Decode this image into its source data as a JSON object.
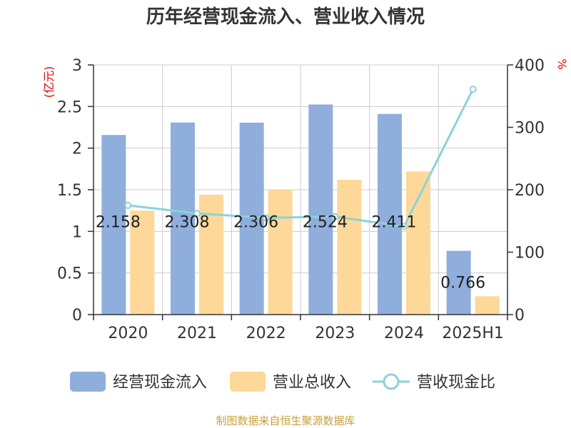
{
  "chart_data": {
    "type": "bar",
    "title": "历年经营现金流入、营业收入情况",
    "categories": [
      "2020",
      "2021",
      "2022",
      "2023",
      "2024",
      "2025H1"
    ],
    "left_axis": {
      "unit_label": "(亿元)",
      "ylim": [
        0,
        3
      ],
      "ticks": [
        "0",
        "0.5",
        "1",
        "1.5",
        "2",
        "2.5",
        "3"
      ]
    },
    "right_axis": {
      "unit_label": "%",
      "ylim": [
        0,
        400
      ],
      "ticks": [
        "0",
        "100",
        "200",
        "300",
        "400"
      ]
    },
    "series": [
      {
        "name": "经营现金流入",
        "type": "bar",
        "axis": "left",
        "color": "#8faedc",
        "values": [
          2.158,
          2.308,
          2.306,
          2.524,
          2.411,
          0.766
        ],
        "labels": [
          "2.158",
          "2.308",
          "2.306",
          "2.524",
          "2.411",
          "0.766"
        ]
      },
      {
        "name": "营业总收入",
        "type": "bar",
        "axis": "left",
        "color": "#fed899",
        "values": [
          1.25,
          1.44,
          1.5,
          1.62,
          1.72,
          0.22
        ]
      },
      {
        "name": "营收现金比",
        "type": "line",
        "axis": "right",
        "color": "#8ad3d8",
        "values": [
          175,
          162,
          155,
          157,
          141,
          361
        ]
      }
    ],
    "grid": true,
    "legend": "bottom",
    "source": "制图数据来自恒生聚源数据库"
  }
}
